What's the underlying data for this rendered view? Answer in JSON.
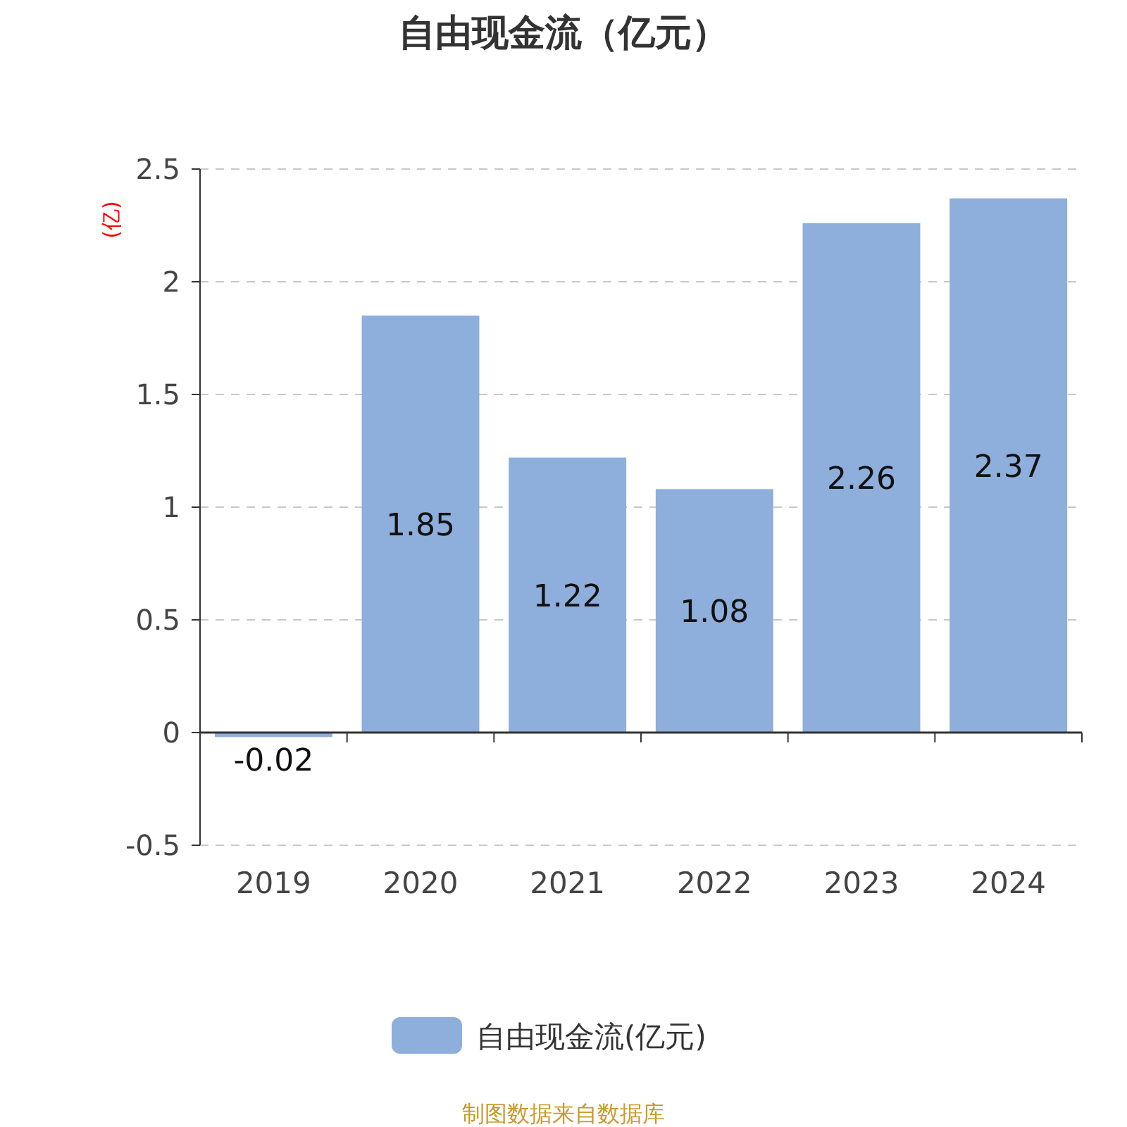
{
  "chart_data": {
    "type": "bar",
    "title": "自由现金流（亿元）",
    "ylabel": "(亿)",
    "categories": [
      "2019",
      "2020",
      "2021",
      "2022",
      "2023",
      "2024"
    ],
    "series": [
      {
        "name": "自由现金流(亿元)",
        "color": "#8eaedb",
        "values": [
          -0.02,
          1.85,
          1.22,
          1.08,
          2.26,
          2.37
        ]
      }
    ],
    "ylim": [
      -0.5,
      2.5
    ],
    "yticks": [
      -0.5,
      0,
      0.5,
      1,
      1.5,
      2,
      2.5
    ],
    "grid": "y",
    "legend": "bottom",
    "data_labels": true,
    "annotations": [
      "制图数据来自数据库"
    ]
  }
}
